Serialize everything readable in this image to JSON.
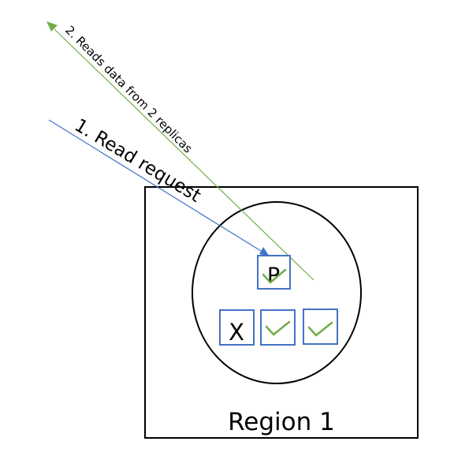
{
  "region": {
    "label": "Region 1"
  },
  "arrows": {
    "read_request": "1. Read request",
    "reads_data": "2. Reads data from 2 replicas"
  },
  "replicas": {
    "primary_label": "P",
    "failed_label": "X"
  },
  "colors": {
    "read_request_arrow": "#4472C4",
    "reads_data_arrow": "#70AD47",
    "replica_border": "#4472C4",
    "check": "#70AD47",
    "outline": "#000000"
  },
  "icons": {
    "check": "check-icon",
    "arrowhead": "arrowhead-icon"
  }
}
